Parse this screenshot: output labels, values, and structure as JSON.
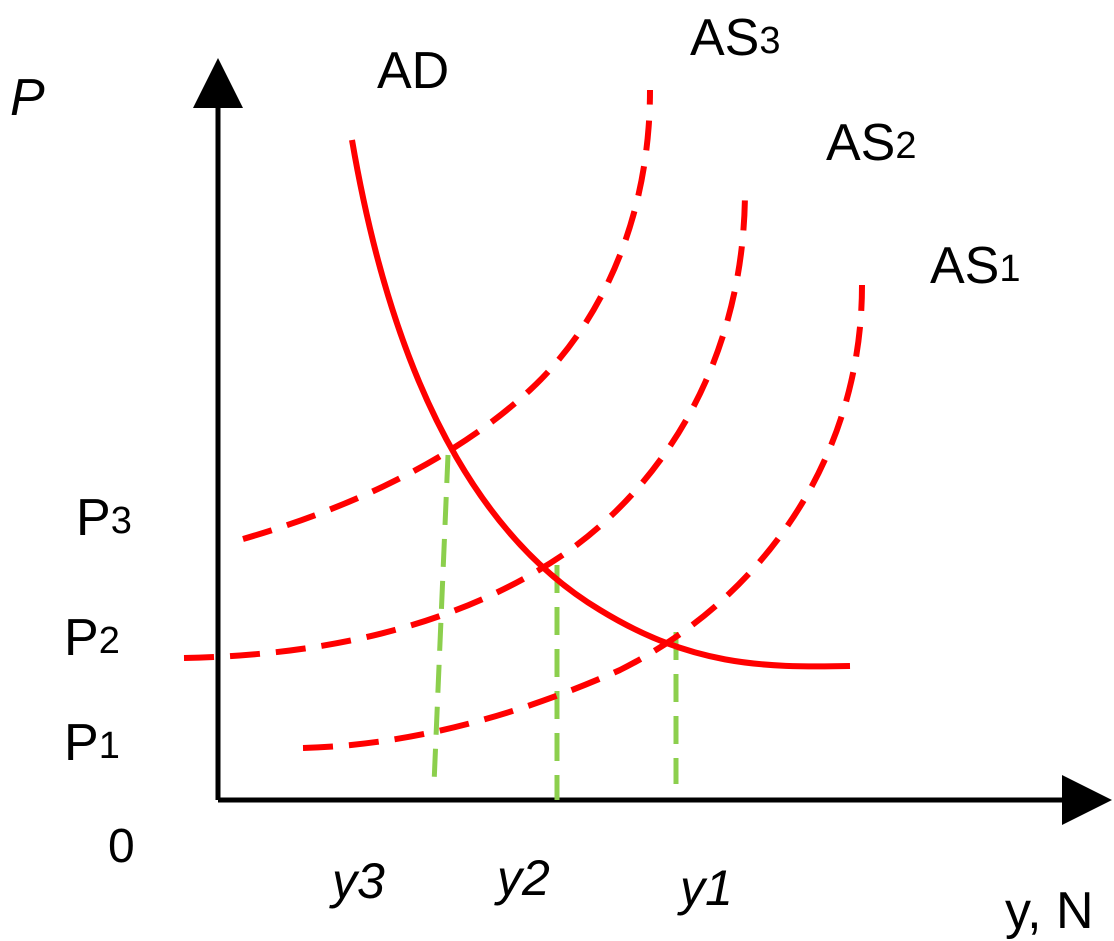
{
  "axes": {
    "y_label": "P",
    "x_label": "y, N",
    "origin_label": "0"
  },
  "curves": {
    "ad": {
      "label": "AD"
    },
    "as3": {
      "base": "AS",
      "sub": "3"
    },
    "as2": {
      "base": "AS",
      "sub": "2"
    },
    "as1": {
      "base": "AS",
      "sub": "1"
    }
  },
  "price_levels": {
    "p3": {
      "base": "P",
      "sub": "3"
    },
    "p2": {
      "base": "P",
      "sub": "2"
    },
    "p1": {
      "base": "P",
      "sub": "1"
    }
  },
  "output_levels": {
    "y3": "y3",
    "y2": "y2",
    "y1": "y1"
  },
  "colors": {
    "axis": "#000000",
    "curves": "#ff0000",
    "guides": "#8ccf4d",
    "text": "#000000"
  }
}
